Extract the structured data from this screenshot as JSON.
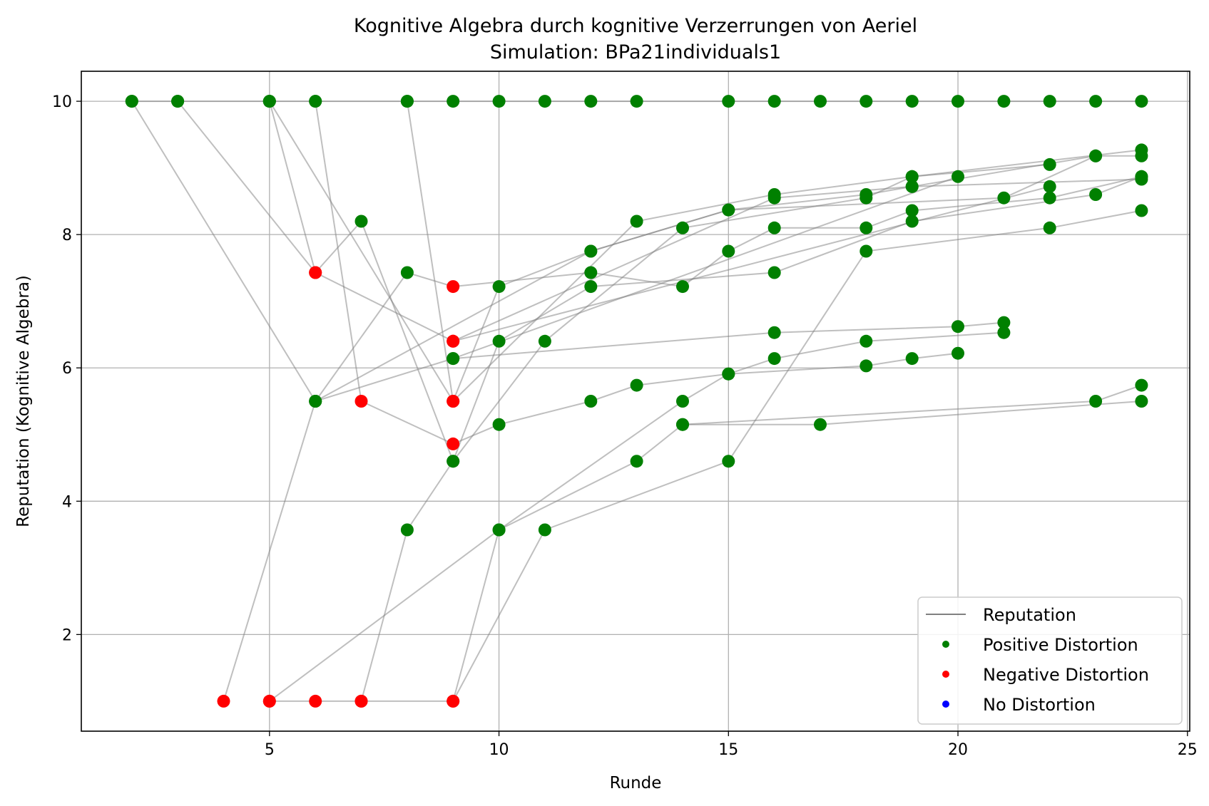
{
  "chart_data": {
    "type": "scatter",
    "title": "Kognitive Algebra durch kognitive Verzerrungen von Aeriel",
    "subtitle": "Simulation: BPa21individuals1",
    "xlabel": "Runde",
    "ylabel": "Reputation (Kognitive Algebra)",
    "xlim": [
      0.9,
      25.05
    ],
    "ylim": [
      0.55,
      10.45
    ],
    "xticks": [
      5,
      10,
      15,
      20,
      25
    ],
    "yticks": [
      2,
      4,
      6,
      8,
      10
    ],
    "grid": true,
    "legend_position": "lower-right",
    "legend": [
      {
        "label": "Reputation",
        "type": "line",
        "color": "#808080"
      },
      {
        "label": "Positive Distortion",
        "type": "marker",
        "color": "#008000"
      },
      {
        "label": "Negative Distortion",
        "type": "marker",
        "color": "#ff0000"
      },
      {
        "label": "No Distortion",
        "type": "marker",
        "color": "#0000ff"
      }
    ],
    "colors": {
      "positive": "#008000",
      "negative": "#ff0000",
      "none": "#0000ff",
      "line": "#808080"
    },
    "series": [
      {
        "points": [
          [
            2,
            10
          ],
          [
            3,
            10
          ],
          [
            5,
            10
          ],
          [
            6,
            10
          ],
          [
            8,
            10
          ],
          [
            9,
            10
          ],
          [
            10,
            10
          ],
          [
            11,
            10
          ],
          [
            12,
            10
          ],
          [
            13,
            10
          ],
          [
            15,
            10
          ],
          [
            16,
            10
          ],
          [
            17,
            10
          ],
          [
            18,
            10
          ],
          [
            19,
            10
          ],
          [
            20,
            10
          ],
          [
            21,
            10
          ],
          [
            22,
            10
          ],
          [
            23,
            10
          ],
          [
            24,
            10
          ]
        ],
        "colors": [
          "g",
          "g",
          "g",
          "g",
          "g",
          "g",
          "g",
          "g",
          "g",
          "g",
          "g",
          "g",
          "g",
          "g",
          "g",
          "g",
          "g",
          "g",
          "g",
          "g"
        ]
      },
      {
        "points": [
          [
            2,
            10
          ],
          [
            6,
            5.5
          ],
          [
            9,
            6.14
          ],
          [
            16,
            6.53
          ],
          [
            20,
            6.62
          ],
          [
            21,
            6.68
          ]
        ],
        "colors": [
          "g",
          "g",
          "g",
          "g",
          "g",
          "g"
        ]
      },
      {
        "points": [
          [
            6,
            10
          ],
          [
            7,
            5.5
          ],
          [
            9,
            4.86
          ],
          [
            10,
            5.15
          ],
          [
            12,
            5.5
          ],
          [
            13,
            5.74
          ],
          [
            15,
            5.91
          ],
          [
            18,
            6.03
          ],
          [
            19,
            6.14
          ],
          [
            20,
            6.22
          ]
        ],
        "colors": [
          "g",
          "r",
          "r",
          "g",
          "g",
          "g",
          "g",
          "g",
          "g",
          "g"
        ]
      },
      {
        "points": [
          [
            3,
            10
          ],
          [
            6,
            7.43
          ],
          [
            9,
            6.4
          ],
          [
            16,
            8.55
          ],
          [
            19,
            8.72
          ],
          [
            23,
            9.18
          ]
        ],
        "colors": [
          "g",
          "r",
          "r",
          "g",
          "g",
          "g"
        ]
      },
      {
        "points": [
          [
            5,
            10
          ],
          [
            9,
            5.5
          ],
          [
            13,
            8.2
          ],
          [
            16,
            8.6
          ],
          [
            19,
            8.87
          ],
          [
            22,
            9.05
          ]
        ],
        "colors": [
          "g",
          "r",
          "g",
          "g",
          "g",
          "g"
        ]
      },
      {
        "points": [
          [
            5,
            10
          ],
          [
            6,
            7.43
          ],
          [
            7,
            8.2
          ],
          [
            9,
            4.6
          ],
          [
            11,
            6.4
          ],
          [
            14,
            8.1
          ],
          [
            18,
            8.55
          ],
          [
            19,
            8.87
          ],
          [
            24,
            9.27
          ]
        ],
        "colors": [
          "g",
          "r",
          "g",
          "g",
          "g",
          "g",
          "g",
          "g",
          "g"
        ]
      },
      {
        "points": [
          [
            8,
            10
          ],
          [
            9,
            5.5
          ],
          [
            10,
            7.22
          ],
          [
            12,
            7.75
          ],
          [
            15,
            8.37
          ],
          [
            18,
            8.6
          ],
          [
            19,
            8.72
          ],
          [
            24,
            8.83
          ]
        ],
        "colors": [
          "g",
          "r",
          "g",
          "g",
          "g",
          "g",
          "g",
          "g"
        ]
      },
      {
        "points": [
          [
            4,
            1
          ],
          [
            6,
            5.5
          ],
          [
            8,
            7.43
          ],
          [
            9,
            7.22
          ],
          [
            12,
            7.43
          ],
          [
            14,
            7.22
          ],
          [
            15,
            7.75
          ],
          [
            16,
            8.1
          ],
          [
            18,
            8.1
          ],
          [
            19,
            8.36
          ],
          [
            22,
            8.55
          ],
          [
            24,
            8.87
          ]
        ],
        "colors": [
          "r",
          "g",
          "g",
          "r",
          "g",
          "g",
          "g",
          "g",
          "g",
          "g",
          "g",
          "g"
        ]
      },
      {
        "points": [
          [
            5,
            1
          ],
          [
            6,
            1
          ],
          [
            7,
            1
          ],
          [
            9,
            1
          ],
          [
            10,
            3.57
          ],
          [
            14,
            5.5
          ],
          [
            15,
            5.91
          ],
          [
            16,
            6.14
          ],
          [
            18,
            6.4
          ],
          [
            21,
            6.53
          ]
        ],
        "colors": [
          "r",
          "r",
          "r",
          "r",
          "g",
          "g",
          "g",
          "g",
          "g",
          "g"
        ]
      },
      {
        "points": [
          [
            5,
            1
          ],
          [
            10,
            3.57
          ],
          [
            13,
            4.6
          ],
          [
            14,
            5.15
          ],
          [
            17,
            5.15
          ],
          [
            24,
            5.5
          ]
        ],
        "colors": [
          "r",
          "g",
          "g",
          "g",
          "g",
          "g"
        ]
      },
      {
        "points": [
          [
            7,
            1
          ],
          [
            8,
            3.57
          ],
          [
            9,
            4.6
          ],
          [
            10,
            6.4
          ],
          [
            12,
            7.22
          ],
          [
            16,
            7.43
          ],
          [
            19,
            8.2
          ],
          [
            23,
            8.6
          ],
          [
            24,
            8.87
          ]
        ],
        "colors": [
          "r",
          "g",
          "g",
          "g",
          "g",
          "g",
          "g",
          "g",
          "g"
        ]
      },
      {
        "points": [
          [
            9,
            1
          ],
          [
            11,
            3.57
          ],
          [
            15,
            4.6
          ],
          [
            18,
            7.75
          ],
          [
            22,
            8.1
          ],
          [
            24,
            8.36
          ]
        ],
        "colors": [
          "r",
          "g",
          "g",
          "g",
          "g",
          "g"
        ]
      },
      {
        "points": [
          [
            6,
            5.5
          ],
          [
            12,
            7.75
          ],
          [
            15,
            8.37
          ],
          [
            21,
            8.55
          ],
          [
            23,
            9.18
          ],
          [
            24,
            9.18
          ]
        ],
        "colors": [
          "g",
          "g",
          "g",
          "g",
          "g",
          "g"
        ]
      },
      {
        "points": [
          [
            14,
            5.15
          ],
          [
            23,
            5.5
          ],
          [
            24,
            5.74
          ]
        ],
        "colors": [
          "g",
          "g",
          "g"
        ]
      },
      {
        "points": [
          [
            9,
            6.14
          ],
          [
            20,
            8.87
          ]
        ],
        "colors": [
          "g",
          "g"
        ]
      },
      {
        "points": [
          [
            9,
            6.4
          ],
          [
            22,
            8.72
          ]
        ],
        "colors": [
          "r",
          "g"
        ]
      }
    ]
  }
}
